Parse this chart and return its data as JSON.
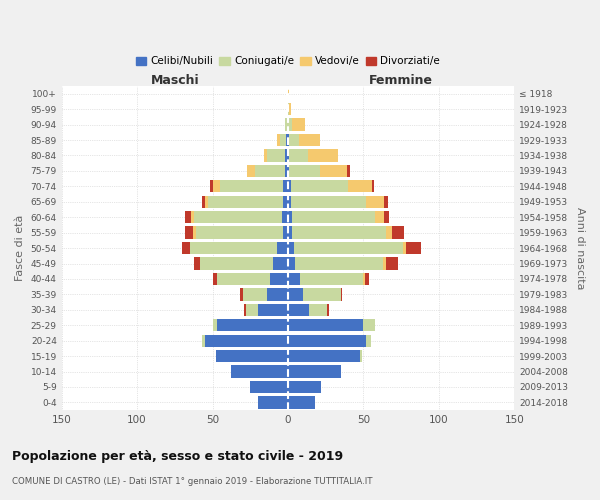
{
  "age_groups": [
    "0-4",
    "5-9",
    "10-14",
    "15-19",
    "20-24",
    "25-29",
    "30-34",
    "35-39",
    "40-44",
    "45-49",
    "50-54",
    "55-59",
    "60-64",
    "65-69",
    "70-74",
    "75-79",
    "80-84",
    "85-89",
    "90-94",
    "95-99",
    "100+"
  ],
  "birth_years": [
    "2014-2018",
    "2009-2013",
    "2004-2008",
    "1999-2003",
    "1994-1998",
    "1989-1993",
    "1984-1988",
    "1979-1983",
    "1974-1978",
    "1969-1973",
    "1964-1968",
    "1959-1963",
    "1954-1958",
    "1949-1953",
    "1944-1948",
    "1939-1943",
    "1934-1938",
    "1929-1933",
    "1924-1928",
    "1919-1923",
    "≤ 1918"
  ],
  "males": {
    "celibi": [
      20,
      25,
      38,
      48,
      55,
      47,
      20,
      14,
      12,
      10,
      7,
      3,
      4,
      3,
      3,
      2,
      2,
      1,
      0,
      0,
      0
    ],
    "coniugati": [
      0,
      0,
      0,
      0,
      2,
      3,
      8,
      16,
      35,
      48,
      58,
      58,
      58,
      50,
      42,
      20,
      12,
      4,
      2,
      0,
      0
    ],
    "vedovi": [
      0,
      0,
      0,
      0,
      0,
      0,
      0,
      0,
      0,
      0,
      0,
      2,
      2,
      2,
      5,
      5,
      2,
      2,
      0,
      0,
      0
    ],
    "divorziati": [
      0,
      0,
      0,
      0,
      0,
      0,
      1,
      2,
      3,
      4,
      5,
      5,
      4,
      2,
      2,
      0,
      0,
      0,
      0,
      0,
      0
    ]
  },
  "females": {
    "nubili": [
      18,
      22,
      35,
      48,
      52,
      50,
      14,
      10,
      8,
      5,
      4,
      3,
      3,
      2,
      2,
      1,
      1,
      1,
      0,
      0,
      0
    ],
    "coniugate": [
      0,
      0,
      0,
      1,
      3,
      8,
      12,
      25,
      42,
      58,
      72,
      62,
      55,
      50,
      38,
      20,
      12,
      6,
      3,
      1,
      0
    ],
    "vedove": [
      0,
      0,
      0,
      0,
      0,
      0,
      0,
      0,
      1,
      2,
      2,
      4,
      6,
      12,
      16,
      18,
      20,
      14,
      8,
      1,
      1
    ],
    "divorziate": [
      0,
      0,
      0,
      0,
      0,
      0,
      1,
      1,
      3,
      8,
      10,
      8,
      3,
      2,
      1,
      2,
      0,
      0,
      0,
      0,
      0
    ]
  },
  "colors": {
    "celibi": "#4472C4",
    "coniugati": "#c8d9a0",
    "vedovi": "#f5c96e",
    "divorziati": "#c0392b"
  },
  "xlim": 150,
  "title": "Popolazione per età, sesso e stato civile - 2019",
  "subtitle": "COMUNE DI CASTRO (LE) - Dati ISTAT 1° gennaio 2019 - Elaborazione TUTTITALIA.IT",
  "xlabel_left": "Maschi",
  "xlabel_right": "Femmine",
  "ylabel": "Fasce di età",
  "ylabel_right": "Anni di nascita",
  "legend_labels": [
    "Celibi/Nubili",
    "Coniugati/e",
    "Vedovi/e",
    "Divorziati/e"
  ],
  "bg_color": "#f0f0f0",
  "plot_bg_color": "#ffffff"
}
